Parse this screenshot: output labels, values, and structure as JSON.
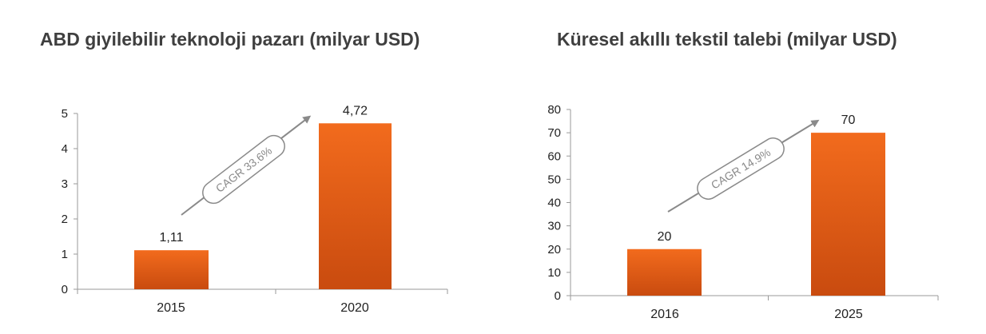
{
  "chart_data": [
    {
      "type": "bar",
      "title": "ABD giyilebilir teknoloji pazarı (milyar USD)",
      "categories": [
        "2015",
        "2020"
      ],
      "values": [
        1.11,
        4.72
      ],
      "value_labels": [
        "1,11",
        "4,72"
      ],
      "ylim": [
        0,
        5
      ],
      "yticks": [
        0,
        1,
        2,
        3,
        4,
        5
      ],
      "annotation": "CAGR 33.6%",
      "bar_color": "#e8621a",
      "grid": false
    },
    {
      "type": "bar",
      "title": "Küresel akıllı tekstil talebi (milyar USD)",
      "categories": [
        "2016",
        "2025"
      ],
      "values": [
        20,
        70
      ],
      "value_labels": [
        "20",
        "70"
      ],
      "ylim": [
        0,
        80
      ],
      "yticks": [
        0,
        10,
        20,
        30,
        40,
        50,
        60,
        70,
        80
      ],
      "annotation": "CAGR 14.9%",
      "bar_color": "#e8621a",
      "grid": false
    }
  ]
}
